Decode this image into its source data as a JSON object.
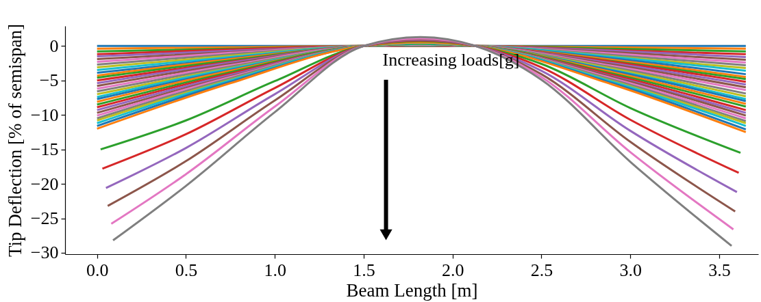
{
  "chart_data": {
    "type": "line",
    "xlabel": "Beam Length [m]",
    "ylabel": "Tip Deflection [% of semispan]",
    "x": [
      0,
      0.75,
      1.5,
      1.82,
      2.13,
      2.9,
      3.65
    ],
    "xlim": [
      -0.18,
      3.72
    ],
    "ylim": [
      -30.2,
      2.9
    ],
    "xticks": [
      {
        "value": 0,
        "label": "0.0"
      },
      0.5,
      {
        "value": 1,
        "label": "1.0"
      },
      1.5,
      {
        "value": 2,
        "label": "2.0"
      },
      2.5,
      {
        "value": 3,
        "label": "3.0"
      },
      3.5
    ],
    "yticks": [
      0,
      -5,
      -10,
      -15,
      -20,
      -25,
      -30
    ],
    "grid": false,
    "legend": false,
    "line_style": "solid",
    "marker": "none",
    "annotations": [
      "Increasing loads[g]"
    ],
    "series": [
      {
        "color": "#1f77b4",
        "values": [
          0,
          0,
          0,
          0,
          0,
          0,
          0
        ]
      },
      {
        "color": "#ff7f0e",
        "values": [
          -0.4,
          -0.2,
          0,
          0.0,
          0,
          -0.2,
          -0.4
        ]
      },
      {
        "color": "#2ca02c",
        "values": [
          -0.8,
          -0.4,
          0,
          0.0,
          0,
          -0.4,
          -0.8
        ]
      },
      {
        "color": "#d62728",
        "values": [
          -1.2,
          -0.5,
          0,
          0.0,
          0,
          -0.6,
          -1.2
        ]
      },
      {
        "color": "#9467bd",
        "values": [
          -1.5,
          -0.7,
          0,
          0.1,
          0,
          -0.7,
          -1.6
        ]
      },
      {
        "color": "#8c564b",
        "values": [
          -1.9,
          -0.9,
          0,
          0.1,
          0,
          -0.9,
          -2.0
        ]
      },
      {
        "color": "#e377c2",
        "values": [
          -2.3,
          -1.0,
          0,
          0.1,
          0,
          -1.1,
          -2.4
        ]
      },
      {
        "color": "#7f7f7f",
        "values": [
          -2.7,
          -1.2,
          0,
          0.1,
          0,
          -1.3,
          -2.8
        ]
      },
      {
        "color": "#bcbd22",
        "values": [
          -3.1,
          -1.4,
          0,
          0.1,
          0,
          -1.5,
          -3.2
        ]
      },
      {
        "color": "#17becf",
        "values": [
          -3.5,
          -1.6,
          0,
          0.1,
          0,
          -1.6,
          -3.6
        ]
      },
      {
        "color": "#1f77b4",
        "values": [
          -3.9,
          -1.8,
          0,
          0.2,
          0,
          -1.8,
          -4.1
        ]
      },
      {
        "color": "#ff7f0e",
        "values": [
          -4.3,
          -1.9,
          0,
          0.2,
          0,
          -2.0,
          -4.5
        ]
      },
      {
        "color": "#2ca02c",
        "values": [
          -4.6,
          -2.1,
          0,
          0.2,
          0,
          -2.2,
          -4.8
        ]
      },
      {
        "color": "#d62728",
        "values": [
          -5.0,
          -2.3,
          0,
          0.2,
          0,
          -2.3,
          -5.2
        ]
      },
      {
        "color": "#9467bd",
        "values": [
          -5.4,
          -2.4,
          0,
          0.2,
          0,
          -2.5,
          -5.6
        ]
      },
      {
        "color": "#8c564b",
        "values": [
          -5.8,
          -2.6,
          0,
          0.2,
          0,
          -2.7,
          -6.0
        ]
      },
      {
        "color": "#e377c2",
        "values": [
          -6.2,
          -2.8,
          0,
          0.2,
          0,
          -2.9,
          -6.4
        ]
      },
      {
        "color": "#7f7f7f",
        "values": [
          -6.6,
          -3.0,
          0,
          0.3,
          0,
          -3.1,
          -6.9
        ]
      },
      {
        "color": "#bcbd22",
        "values": [
          -7.0,
          -3.2,
          0,
          0.3,
          0,
          -3.3,
          -7.3
        ]
      },
      {
        "color": "#17becf",
        "values": [
          -7.4,
          -3.3,
          0,
          0.3,
          0,
          -3.5,
          -7.7
        ]
      },
      {
        "color": "#1f77b4",
        "values": [
          -7.7,
          -3.5,
          0,
          0.3,
          0,
          -3.6,
          -8.0
        ]
      },
      {
        "color": "#ff7f0e",
        "values": [
          -8.1,
          -3.6,
          0,
          0.3,
          0,
          -3.8,
          -8.4
        ]
      },
      {
        "color": "#2ca02c",
        "values": [
          -8.5,
          -3.8,
          0,
          0.3,
          0,
          -4.0,
          -8.8
        ]
      },
      {
        "color": "#d62728",
        "values": [
          -8.9,
          -4.0,
          0,
          0.4,
          0,
          -4.2,
          -9.3
        ]
      },
      {
        "color": "#9467bd",
        "values": [
          -9.3,
          -4.2,
          0,
          0.4,
          0,
          -4.4,
          -9.7
        ]
      },
      {
        "color": "#8c564b",
        "values": [
          -9.7,
          -4.4,
          0,
          0.4,
          0,
          -4.5,
          -10.1
        ]
      },
      {
        "color": "#e377c2",
        "values": [
          -10.1,
          -4.5,
          0,
          0.4,
          0,
          -4.7,
          -10.5
        ]
      },
      {
        "color": "#7f7f7f",
        "values": [
          -10.5,
          -4.7,
          0,
          0.4,
          0,
          -4.9,
          -10.9
        ]
      },
      {
        "color": "#bcbd22",
        "values": [
          -10.8,
          -4.9,
          0,
          0.4,
          0,
          -5.1,
          -11.2
        ]
      },
      {
        "color": "#17becf",
        "values": [
          -11.2,
          -5.0,
          0,
          0.4,
          0,
          -5.2,
          -11.6
        ]
      },
      {
        "color": "#1f77b4",
        "values": [
          -11.6,
          -5.2,
          0,
          0.5,
          0,
          -5.4,
          -12.1
        ]
      },
      {
        "color": "#ff7f0e",
        "values": [
          -12.0,
          -5.4,
          0,
          0.5,
          0,
          -5.6,
          -12.5
        ]
      },
      {
        "color": "#2ca02c",
        "x": [
          0.02,
          0.5,
          1.0,
          1.5,
          1.82,
          2.13,
          2.5,
          3.0,
          3.62
        ],
        "values": [
          -15.0,
          -10.8,
          -5.1,
          0,
          0.7,
          0,
          -2.6,
          -9.0,
          -15.5
        ]
      },
      {
        "color": "#d62728",
        "x": [
          0.03,
          0.5,
          1.0,
          1.5,
          1.82,
          2.13,
          2.5,
          3.0,
          3.61
        ],
        "values": [
          -17.8,
          -12.8,
          -6.1,
          0,
          0.8,
          0,
          -3.1,
          -10.7,
          -18.4
        ]
      },
      {
        "color": "#9467bd",
        "x": [
          0.05,
          0.5,
          1.0,
          1.5,
          1.82,
          2.13,
          2.5,
          3.0,
          3.6
        ],
        "values": [
          -20.6,
          -14.8,
          -7.0,
          0,
          0.9,
          0,
          -3.6,
          -12.3,
          -21.2
        ]
      },
      {
        "color": "#8c564b",
        "x": [
          0.06,
          0.5,
          1.0,
          1.5,
          1.82,
          2.13,
          2.5,
          3.0,
          3.59
        ],
        "values": [
          -23.2,
          -16.7,
          -7.9,
          0,
          1.0,
          0,
          -4.1,
          -13.9,
          -24.0
        ]
      },
      {
        "color": "#e377c2",
        "x": [
          0.08,
          0.5,
          1.0,
          1.5,
          1.82,
          2.13,
          2.5,
          3.0,
          3.58
        ],
        "values": [
          -25.8,
          -18.6,
          -8.8,
          0,
          1.1,
          0,
          -4.5,
          -15.4,
          -26.6
        ]
      },
      {
        "color": "#7f7f7f",
        "x": [
          0.09,
          0.5,
          1.0,
          1.5,
          1.82,
          2.13,
          2.5,
          3.0,
          3.57
        ],
        "values": [
          -28.2,
          -20.3,
          -9.6,
          0,
          1.3,
          0,
          -4.9,
          -16.8,
          -29.0
        ]
      }
    ]
  }
}
